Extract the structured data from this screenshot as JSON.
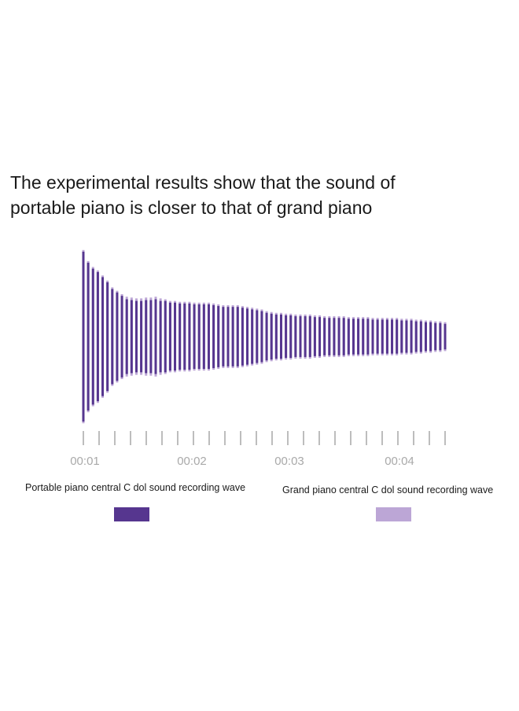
{
  "title_lines": [
    "The experimental results show that the sound of",
    "portable piano is closer to that of grand piano"
  ],
  "colors": {
    "portable": "#56368f",
    "grand": "#bca6d6",
    "tick": "#bdbdbd",
    "tick_label": "#a9a9a9"
  },
  "chart_data": {
    "type": "bar",
    "x_tick_labels": [
      "00:01",
      "00:02",
      "00:03",
      "00:04"
    ],
    "series": [
      {
        "name": "Portable piano central C dol sound recording wave",
        "values": [
          1.0,
          0.87,
          0.8,
          0.76,
          0.7,
          0.64,
          0.56,
          0.52,
          0.48,
          0.44,
          0.43,
          0.42,
          0.42,
          0.43,
          0.43,
          0.44,
          0.42,
          0.42,
          0.4,
          0.4,
          0.39,
          0.39,
          0.39,
          0.38,
          0.38,
          0.38,
          0.38,
          0.37,
          0.36,
          0.35,
          0.35,
          0.35,
          0.35,
          0.34,
          0.33,
          0.32,
          0.31,
          0.3,
          0.28,
          0.27,
          0.26,
          0.26,
          0.25,
          0.25,
          0.24,
          0.24,
          0.24,
          0.24,
          0.23,
          0.23,
          0.22,
          0.22,
          0.22,
          0.22,
          0.22,
          0.21,
          0.21,
          0.21,
          0.21,
          0.21,
          0.2,
          0.2,
          0.2,
          0.2,
          0.2,
          0.2,
          0.19,
          0.19,
          0.19,
          0.18,
          0.18,
          0.17,
          0.17,
          0.16,
          0.16,
          0.15
        ]
      },
      {
        "name": "Grand piano central C dol sound recording wave",
        "values": [
          1.02,
          0.89,
          0.82,
          0.78,
          0.72,
          0.66,
          0.58,
          0.54,
          0.5,
          0.47,
          0.46,
          0.45,
          0.45,
          0.46,
          0.46,
          0.47,
          0.45,
          0.44,
          0.42,
          0.42,
          0.41,
          0.41,
          0.41,
          0.4,
          0.4,
          0.4,
          0.4,
          0.39,
          0.38,
          0.37,
          0.37,
          0.37,
          0.37,
          0.36,
          0.35,
          0.34,
          0.33,
          0.32,
          0.3,
          0.29,
          0.28,
          0.28,
          0.27,
          0.27,
          0.26,
          0.26,
          0.26,
          0.26,
          0.25,
          0.25,
          0.24,
          0.24,
          0.24,
          0.24,
          0.24,
          0.23,
          0.23,
          0.23,
          0.23,
          0.23,
          0.22,
          0.22,
          0.22,
          0.22,
          0.22,
          0.22,
          0.21,
          0.21,
          0.21,
          0.2,
          0.2,
          0.19,
          0.19,
          0.18,
          0.18,
          0.17
        ]
      }
    ],
    "grid": false,
    "legend_position": "bottom"
  }
}
